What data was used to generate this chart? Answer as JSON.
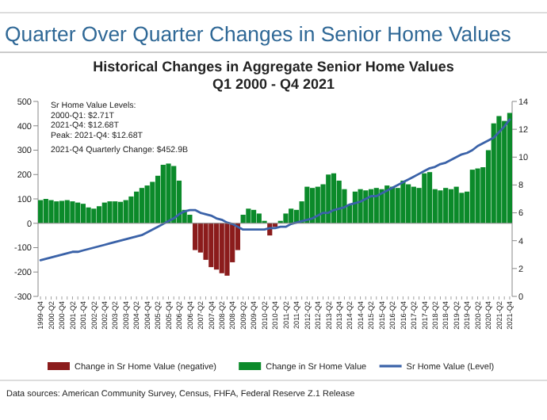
{
  "chart_data": {
    "type": "bar",
    "title": "Quarter Over Quarter Changes in Senior Home Values",
    "subtitle": "Historical Changes in Aggregate Senior Home Values\nQ1 2000 - Q4 2021",
    "categories": [
      "1999-Q4",
      null,
      "2000-Q2",
      null,
      "2000-Q4",
      null,
      "2001-Q2",
      null,
      "2001-Q4",
      null,
      "2002-Q2",
      null,
      "2002-Q4",
      null,
      "2003-Q2",
      null,
      "2003-Q4",
      null,
      "2004-Q2",
      null,
      "2004-Q4",
      null,
      "2005-Q2",
      null,
      "2005-Q4",
      null,
      "2006-Q2",
      null,
      "2006-Q4",
      null,
      "2007-Q2",
      null,
      "2007-Q4",
      null,
      "2008-Q2",
      null,
      "2008-Q4",
      null,
      "2009-Q2",
      null,
      "2009-Q4",
      null,
      "2010-Q2",
      null,
      "2010-Q4",
      null,
      "2011-Q2",
      null,
      "2011-Q4",
      null,
      "2012-Q2",
      null,
      "2012-Q4",
      null,
      "2013-Q2",
      null,
      "2013-Q4",
      null,
      "2014-Q2",
      null,
      "2014-Q4",
      null,
      "2015-Q2",
      null,
      "2015-Q4",
      null,
      "2016-Q2",
      null,
      "2016-Q4",
      null,
      "2017-Q2",
      null,
      "2017-Q4",
      null,
      "2018-Q2",
      null,
      "2018-Q4",
      null,
      "2019-Q2",
      null,
      "2019-Q4",
      null,
      "2020-Q2",
      null,
      "2020-Q4",
      null,
      "2021-Q2",
      null,
      "2021-Q4"
    ],
    "series": [
      {
        "name": "Change in Sr Home Value (negative)",
        "color": "#8b1c1c",
        "values": [
          null,
          null,
          null,
          null,
          null,
          null,
          null,
          null,
          null,
          null,
          null,
          null,
          null,
          null,
          null,
          null,
          null,
          null,
          null,
          null,
          null,
          null,
          null,
          null,
          null,
          null,
          null,
          null,
          null,
          -110,
          -120,
          -150,
          -180,
          -190,
          -205,
          -215,
          -160,
          -110,
          null,
          null,
          null,
          null,
          null,
          -50,
          -15,
          null,
          null,
          null,
          null,
          null,
          null,
          null,
          null,
          null,
          null,
          null,
          null,
          null,
          null,
          null,
          null,
          null,
          null,
          null,
          null,
          null,
          null,
          null,
          null,
          null,
          null,
          null,
          null,
          null,
          null,
          null,
          null,
          null,
          null,
          null,
          null,
          null,
          null,
          null,
          null,
          null,
          null,
          null,
          null
        ]
      },
      {
        "name": "Change in Sr Home Value",
        "color": "#0b8a2a",
        "values": [
          95,
          100,
          95,
          90,
          92,
          95,
          90,
          85,
          80,
          65,
          60,
          70,
          85,
          90,
          90,
          88,
          95,
          110,
          130,
          145,
          155,
          170,
          195,
          240,
          245,
          235,
          175,
          55,
          35,
          null,
          null,
          null,
          null,
          null,
          null,
          null,
          null,
          null,
          35,
          60,
          55,
          40,
          10,
          null,
          null,
          10,
          40,
          60,
          55,
          90,
          150,
          145,
          150,
          160,
          200,
          205,
          175,
          140,
          75,
          130,
          140,
          135,
          140,
          145,
          140,
          155,
          150,
          145,
          175,
          160,
          150,
          145,
          205,
          210,
          140,
          135,
          145,
          140,
          150,
          125,
          130,
          220,
          225,
          230,
          300,
          410,
          440,
          420,
          452.9
        ]
      },
      {
        "name": "Sr Home Value (Level)",
        "type": "line",
        "axis": "y2",
        "color": "#3a62a8",
        "values": [
          2.6,
          2.7,
          2.8,
          2.9,
          3.0,
          3.1,
          3.2,
          3.2,
          3.3,
          3.4,
          3.5,
          3.6,
          3.7,
          3.8,
          3.9,
          4.0,
          4.1,
          4.2,
          4.3,
          4.4,
          4.6,
          4.8,
          5.0,
          5.2,
          5.4,
          5.6,
          5.9,
          6.1,
          6.2,
          6.2,
          6.0,
          5.9,
          5.8,
          5.6,
          5.5,
          5.3,
          5.2,
          5.0,
          4.8,
          4.8,
          4.8,
          4.8,
          4.8,
          4.9,
          4.9,
          5.0,
          5.0,
          5.2,
          5.3,
          5.4,
          5.5,
          5.6,
          5.8,
          6.0,
          6.0,
          6.2,
          6.3,
          6.4,
          6.6,
          6.7,
          6.8,
          7.0,
          7.2,
          7.2,
          7.4,
          7.6,
          7.8,
          8.0,
          8.2,
          8.4,
          8.6,
          8.8,
          9.0,
          9.2,
          9.3,
          9.5,
          9.6,
          9.8,
          10.0,
          10.2,
          10.3,
          10.5,
          10.8,
          11.0,
          11.2,
          11.4,
          11.8,
          12.2,
          12.7
        ]
      }
    ],
    "ylim": [
      -300,
      500
    ],
    "yticks": [
      -300,
      -200,
      -100,
      0,
      100,
      200,
      300,
      400,
      500
    ],
    "y2lim": [
      0,
      14
    ],
    "y2ticks": [
      0,
      2,
      4,
      6,
      8,
      10,
      12,
      14
    ],
    "legend": "bottom",
    "annotations": [
      "Sr Home Value Levels:",
      "2000-Q1: $2.71T",
      "2021-Q4: $12.68T",
      "Peak: 2021-Q4: $12.68T",
      "2021-Q4 Quarterly Change: $452.9B",
      "Data sources: American Community Survey, Census, FHFA, Federal Reserve Z.1 Release"
    ]
  }
}
